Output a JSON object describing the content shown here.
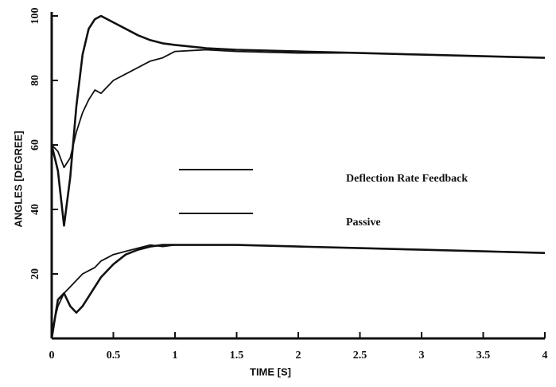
{
  "chart_data": {
    "type": "line",
    "xlabel": "TIME [S]",
    "ylabel": "ANGLES [DEGREE]",
    "x": [
      0,
      0.05,
      0.1,
      0.15,
      0.2,
      0.25,
      0.3,
      0.35,
      0.4,
      0.5,
      0.6,
      0.7,
      0.8,
      0.9,
      1,
      1.25,
      1.5,
      2,
      2.5,
      3,
      3.5,
      4
    ],
    "series": [
      {
        "name": "Deflection Rate Feedback",
        "color": "#111111",
        "values": [
          60,
          52,
          35,
          50,
          72,
          88,
          96,
          99,
          100,
          98,
          96,
          94,
          92.5,
          91.5,
          91,
          90,
          89.5,
          89,
          88.5,
          88,
          87.5,
          87
        ]
      },
      {
        "name": "Passive",
        "color": "#111111",
        "values": [
          60,
          58,
          53,
          56,
          64,
          70,
          74,
          77,
          76,
          80,
          82,
          84,
          86,
          87,
          89,
          89.5,
          89,
          88.5,
          88.5,
          88,
          87.5,
          87
        ]
      },
      {
        "color": "#111111",
        "values": [
          0,
          12,
          14,
          10,
          8,
          10,
          13,
          16,
          19,
          23,
          26,
          27.5,
          28.5,
          29,
          29,
          29,
          29,
          28.5,
          28,
          27.5,
          27,
          26.5
        ]
      },
      {
        "color": "#111111",
        "values": [
          2,
          10,
          14,
          16,
          18,
          20,
          21,
          22,
          24,
          26,
          27,
          28,
          29,
          28.5,
          29,
          29,
          29,
          28.5,
          28,
          27.5,
          27,
          26.5
        ]
      }
    ],
    "xlim": [
      0,
      4
    ],
    "xticks": [
      0,
      0.5,
      1,
      1.5,
      2,
      2.5,
      3,
      3.5,
      4
    ],
    "ylim": [
      0,
      100
    ],
    "yticks": [
      20,
      40,
      60,
      80,
      100
    ],
    "grid": false
  }
}
